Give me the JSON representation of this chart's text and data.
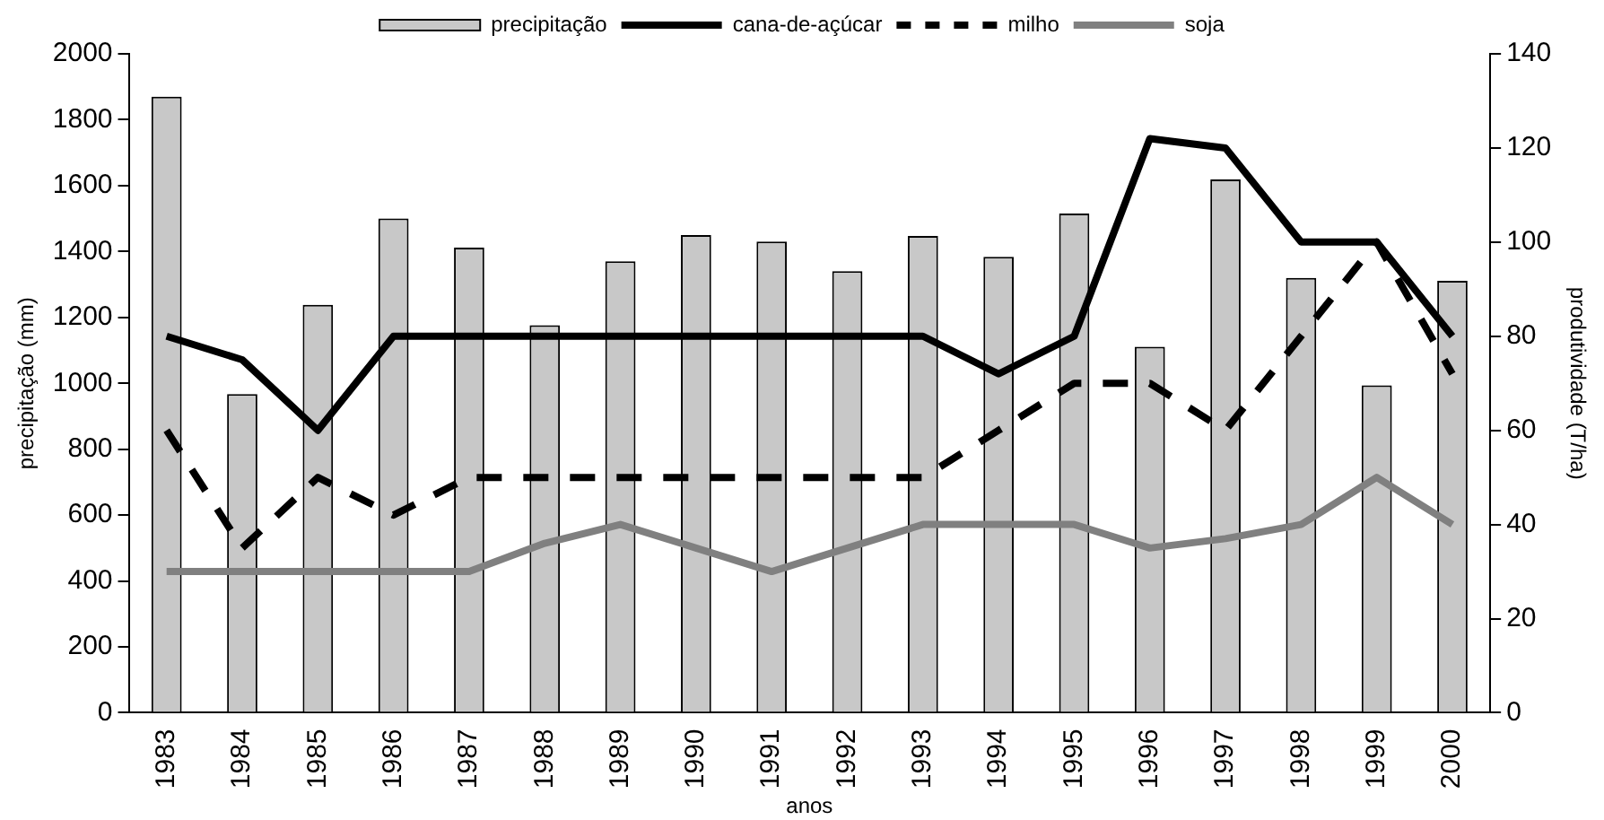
{
  "chart_data": {
    "type": "bar",
    "xlabel": "anos",
    "ylabel": "precipitação (mm)",
    "y2label": "produtividade (T/ha)",
    "categories": [
      "1983",
      "1984",
      "1985",
      "1986",
      "1987",
      "1988",
      "1989",
      "1990",
      "1991",
      "1992",
      "1993",
      "1994",
      "1995",
      "1996",
      "1997",
      "1998",
      "1999",
      "2000"
    ],
    "series": [
      {
        "name": "precipitação",
        "color": "#c8c8c8",
        "values": [
          1870,
          967,
          1238,
          1500,
          1412,
          1176,
          1370,
          1450,
          1430,
          1340,
          1447,
          1384,
          1515,
          1111,
          1619,
          1320,
          994,
          1311
        ]
      },
      {
        "name": "cana-de-açúcar",
        "type": "line",
        "axis": "y2",
        "color": "#000000",
        "line_style": "solid",
        "values": [
          80,
          75,
          60,
          80,
          80,
          80,
          80,
          80,
          80,
          80,
          80,
          72,
          80,
          122,
          120,
          100,
          100,
          80
        ]
      },
      {
        "name": "milho",
        "type": "line",
        "axis": "y2",
        "color": "#000000",
        "line_style": "dashed",
        "values": [
          60,
          35,
          50,
          42,
          50,
          50,
          50,
          50,
          50,
          50,
          50,
          60,
          70,
          70,
          60,
          80,
          100,
          72
        ]
      },
      {
        "name": "soja",
        "type": "line",
        "axis": "y2",
        "color": "#808080",
        "line_style": "solid",
        "values": [
          30,
          30,
          30,
          30,
          30,
          36,
          40,
          35,
          30,
          35,
          40,
          40,
          40,
          35,
          37,
          40,
          50,
          40
        ]
      }
    ],
    "ylim": [
      0,
      2000
    ],
    "yticks": [
      0,
      200,
      400,
      600,
      800,
      1000,
      1200,
      1400,
      1600,
      1800,
      2000
    ],
    "y2lim": [
      0,
      140
    ],
    "y2ticks": [
      0,
      20,
      40,
      60,
      80,
      100,
      120,
      140
    ],
    "grid": false,
    "legend": "top",
    "marker": "none"
  }
}
